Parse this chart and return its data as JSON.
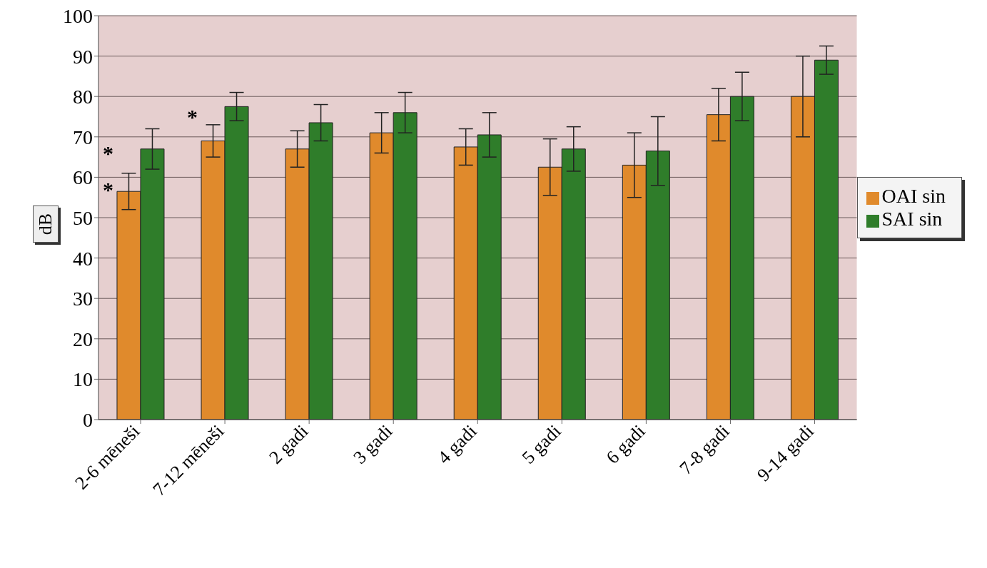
{
  "chart_data": {
    "type": "bar",
    "ylabel": "dB",
    "categories": [
      "2-6 mēneši",
      "7-12 mēneši",
      "2 gadi",
      "3 gadi",
      "4 gadi",
      "5 gadi",
      "6 gadi",
      "7-8 gadi",
      "9-14 gadi"
    ],
    "series": [
      {
        "name": "OAI sin",
        "color": "#e08a2c",
        "values": [
          56.5,
          69,
          67,
          71,
          67.5,
          62.5,
          63,
          75.5,
          80
        ],
        "errors": [
          4.5,
          4,
          4.5,
          5,
          4.5,
          7,
          8,
          6.5,
          10
        ]
      },
      {
        "name": "SAI sin",
        "color": "#2f7d2a",
        "values": [
          67,
          77.5,
          73.5,
          76,
          70.5,
          67,
          66.5,
          80,
          89
        ],
        "errors": [
          5,
          3.5,
          4.5,
          5,
          5.5,
          5.5,
          8.5,
          6,
          3.5
        ]
      }
    ],
    "annotations": [
      {
        "text": "*",
        "x": "2-6 mēneši",
        "y": 57
      },
      {
        "text": "*",
        "x": "2-6 mēneši",
        "y": 66
      },
      {
        "text": "*",
        "x": "7-12 mēneši",
        "y": 75
      }
    ],
    "ylim": [
      0,
      100
    ],
    "yticks": [
      0,
      10,
      20,
      30,
      40,
      50,
      60,
      70,
      80,
      90,
      100
    ],
    "grid": "y",
    "legend": "right"
  }
}
